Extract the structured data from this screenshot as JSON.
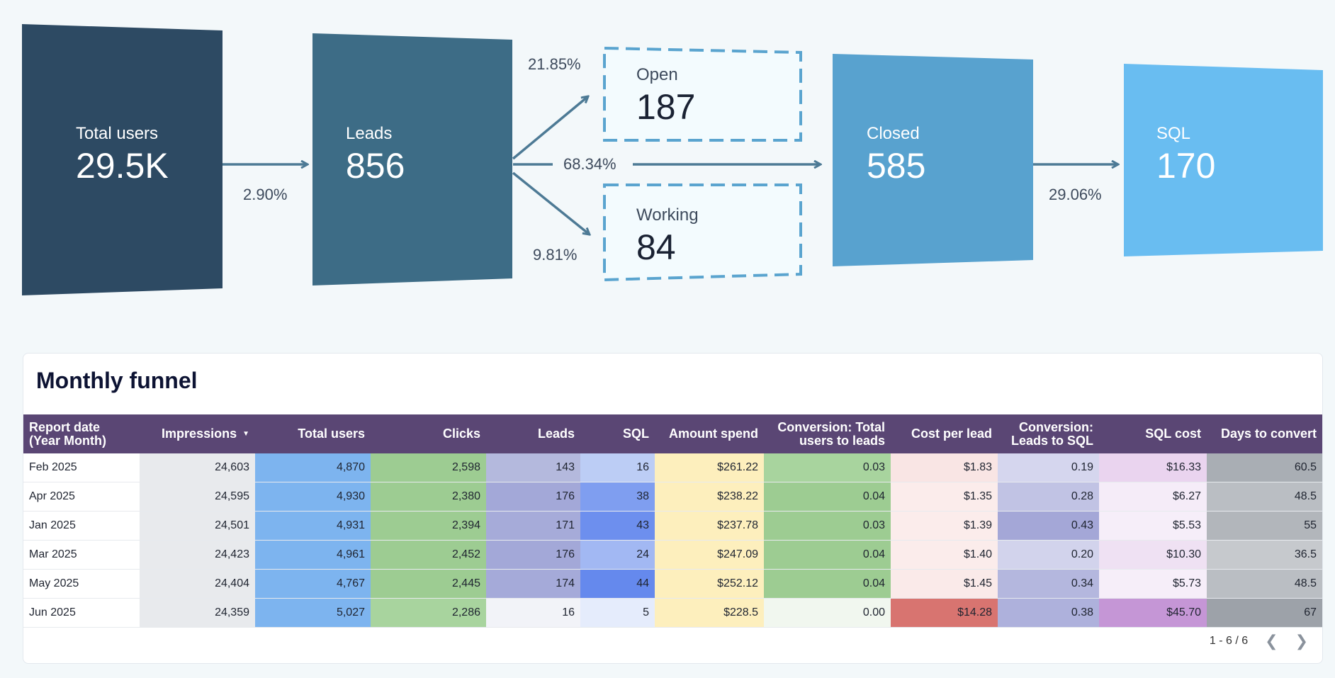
{
  "funnel": {
    "stages": [
      {
        "label": "Total users",
        "value": "29.5K",
        "color": "#2d4a63"
      },
      {
        "label": "Leads",
        "value": "856",
        "color": "#3d6c86"
      },
      {
        "label": "Closed",
        "value": "585",
        "color": "#58a2cf"
      },
      {
        "label": "SQL",
        "value": "170",
        "color": "#69bdf1"
      }
    ],
    "branches": [
      {
        "label": "Open",
        "value": "187"
      },
      {
        "label": "Working",
        "value": "84"
      }
    ],
    "percentages": {
      "users_to_leads": "2.90%",
      "leads_to_open": "21.85%",
      "leads_to_closed": "68.34%",
      "leads_to_working": "9.81%",
      "closed_to_sql": "29.06%"
    },
    "arrow_color": "#4d7a95",
    "box_border_color": "#5aa4cf"
  },
  "table": {
    "title": "Monthly funnel",
    "columns": [
      "Report date (Year Month)",
      "Impressions",
      "Total users",
      "Clicks",
      "Leads",
      "SQL",
      "Amount spend",
      "Conversion: Total users to leads",
      "Cost per lead",
      "Conversion: Leads to SQL",
      "SQL cost",
      "Days to convert"
    ],
    "rows": [
      [
        "Feb 2025",
        "24,603",
        "4,870",
        "2,598",
        "143",
        "16",
        "$261.22",
        "0.03",
        "$1.83",
        "0.19",
        "$16.33",
        "60.5"
      ],
      [
        "Apr 2025",
        "24,595",
        "4,930",
        "2,380",
        "176",
        "38",
        "$238.22",
        "0.04",
        "$1.35",
        "0.28",
        "$6.27",
        "48.5"
      ],
      [
        "Jan 2025",
        "24,501",
        "4,931",
        "2,394",
        "171",
        "43",
        "$237.78",
        "0.03",
        "$1.39",
        "0.43",
        "$5.53",
        "55"
      ],
      [
        "Mar 2025",
        "24,423",
        "4,961",
        "2,452",
        "176",
        "24",
        "$247.09",
        "0.04",
        "$1.40",
        "0.20",
        "$10.30",
        "36.5"
      ],
      [
        "May 2025",
        "24,404",
        "4,767",
        "2,445",
        "174",
        "44",
        "$252.12",
        "0.04",
        "$1.45",
        "0.34",
        "$5.73",
        "48.5"
      ],
      [
        "Jun 2025",
        "24,359",
        "5,027",
        "2,286",
        "16",
        "5",
        "$228.5",
        "0.00",
        "$14.28",
        "0.38",
        "$45.70",
        "67"
      ]
    ],
    "cell_colors": [
      [
        "#ffffff",
        "#e8eaed",
        "#7db4ef",
        "#9dcc92",
        "#b4b9dd",
        "#bccdf5",
        "#fdefbd",
        "#a8d49e",
        "#f9e5e4",
        "#d5d6ee",
        "#ead4ef",
        "#a9aeb4"
      ],
      [
        "#ffffff",
        "#e8eaed",
        "#7db4ef",
        "#9dcc92",
        "#a3a8d8",
        "#7f9ef0",
        "#fdefbd",
        "#9dcc92",
        "#fbeceb",
        "#c1c3e4",
        "#f5ecf8",
        "#babec3"
      ],
      [
        "#ffffff",
        "#e8eaed",
        "#7db4ef",
        "#9dcc92",
        "#a6abd9",
        "#6d8fee",
        "#fdefbd",
        "#9dcc92",
        "#fbeceb",
        "#a4a7d7",
        "#f6eef9",
        "#b2b6bb"
      ],
      [
        "#ffffff",
        "#e8eaed",
        "#7db4ef",
        "#9dcc92",
        "#a3a8d8",
        "#a2b8f3",
        "#fdefbd",
        "#9dcc92",
        "#fbeceb",
        "#d2d3ec",
        "#efe1f3",
        "#c6c9cd"
      ],
      [
        "#ffffff",
        "#e8eaed",
        "#7db4ef",
        "#9dcc92",
        "#a5aad9",
        "#6589ed",
        "#fdefbd",
        "#9dcc92",
        "#faeae9",
        "#b4b7de",
        "#f6eef9",
        "#babec3"
      ],
      [
        "#ffffff",
        "#e8eaed",
        "#7db4ef",
        "#a8d49e",
        "#f2f3f8",
        "#e5ecfc",
        "#fdefbd",
        "#f1f7ef",
        "#d87470",
        "#aeb1dc",
        "#c596d6",
        "#9da2a9"
      ]
    ],
    "sorted_column": "Impressions",
    "sort_direction": "descending",
    "header_color": "#5a4674"
  },
  "pagination": {
    "range": "1 - 6 / 6",
    "prev_icon": "chevron-left-icon",
    "next_icon": "chevron-right-icon"
  }
}
